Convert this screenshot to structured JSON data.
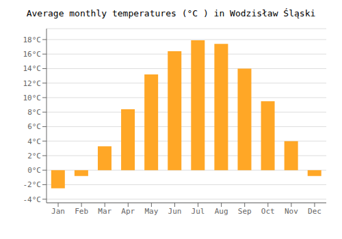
{
  "chart_data": {
    "type": "bar",
    "title": "Average monthly temperatures (°C ) in Wodzisław Śląski",
    "categories": [
      "Jan",
      "Feb",
      "Mar",
      "Apr",
      "May",
      "Jun",
      "Jul",
      "Aug",
      "Sep",
      "Oct",
      "Nov",
      "Dec"
    ],
    "values": [
      -2.5,
      -0.8,
      3.3,
      8.4,
      13.2,
      16.4,
      17.9,
      17.4,
      14.0,
      9.5,
      4.0,
      -0.8
    ],
    "color": "#FFA726",
    "ylim": [
      -4.5,
      19.5
    ],
    "yticks": [
      {
        "value": -4,
        "label": "-4°C"
      },
      {
        "value": -2,
        "label": "-2°C"
      },
      {
        "value": 0,
        "label": "0°C"
      },
      {
        "value": 2,
        "label": "2°C"
      },
      {
        "value": 4,
        "label": "4°C"
      },
      {
        "value": 6,
        "label": "6°C"
      },
      {
        "value": 8,
        "label": "8°C"
      },
      {
        "value": 10,
        "label": "10°C"
      },
      {
        "value": 12,
        "label": "12°C"
      },
      {
        "value": 14,
        "label": "14°C"
      },
      {
        "value": 16,
        "label": "16°C"
      },
      {
        "value": 18,
        "label": "18°C"
      }
    ],
    "grid": true
  }
}
